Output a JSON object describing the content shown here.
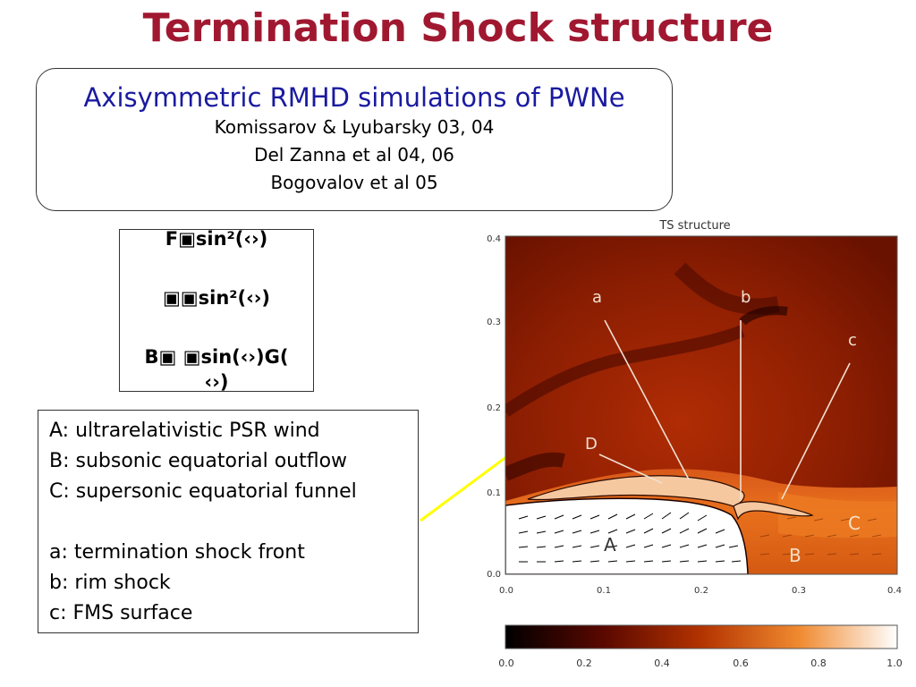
{
  "slide": {
    "title": "Termination Shock structure"
  },
  "simulations": {
    "heading": "Axisymmetric RMHD simulations of PWNe",
    "references": [
      "Komissarov & Lyubarsky 03, 04",
      "Del Zanna et al 04, 06",
      "Bogovalov et al 05"
    ]
  },
  "formulas": {
    "line1": "F▣sin²(‹›)",
    "line2": "▣▣sin²(‹›)",
    "line3a": "B▣ ▣sin(‹›)G(",
    "line3b": "‹›)"
  },
  "legend": {
    "A": "A: ultrarelativistic PSR wind",
    "B": "B: subsonic equatorial outflow",
    "C": "C: supersonic equatorial funnel",
    "a": "a: termination shock front",
    "b": "b: rim shock",
    "c": "c: FMS surface"
  },
  "figure": {
    "title": "TS structure",
    "x_ticks": [
      "0.0",
      "0.1",
      "0.2",
      "0.3",
      "0.4"
    ],
    "y_ticks": [
      "0.0",
      "0.1",
      "0.2",
      "0.3",
      "0.4"
    ],
    "colorbar_ticks": [
      "0.0",
      "0.2",
      "0.4",
      "0.6",
      "0.8",
      "1.0"
    ],
    "labels": {
      "a": "a",
      "b": "b",
      "c": "c",
      "D": "D",
      "A": "A",
      "B": "B",
      "C": "C"
    },
    "colors": {
      "dark": "#3a0400",
      "mid": "#9c2200",
      "bright": "#e8701c",
      "light": "#f6c8a0",
      "arrow": "#ffff00"
    }
  }
}
